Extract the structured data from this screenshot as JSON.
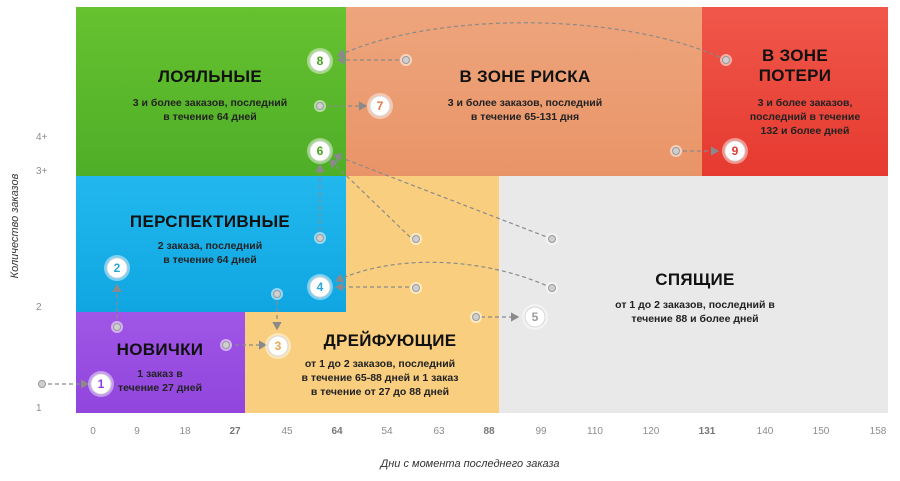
{
  "segments": {
    "loyal": {
      "title": "ЛОЯЛЬНЫЕ",
      "desc": "3 и более заказов, последний\nв течение 64 дней",
      "color": "#5ab82c"
    },
    "risk": {
      "title": "В ЗОНЕ РИСКА",
      "desc": "3 и более заказов, последний\nв течение 65-131 дня",
      "color": "#eb9e74"
    },
    "loss": {
      "title": "В ЗОНЕ\nПОТЕРИ",
      "desc": "3 и более заказов,\nпоследний в течение\n132 и более  дней",
      "color": "#e8473b"
    },
    "perspective": {
      "title": "ПЕРСПЕКТИВНЫЕ",
      "desc": "2 заказа, последний\nв течение 64 дней",
      "color": "#17b1ea"
    },
    "sleeping": {
      "title": "СПЯЩИЕ",
      "desc": "от 1 до 2 заказов, последний в\nтечение 88 и более дней",
      "color": "#e8e8e8"
    },
    "newbies": {
      "title": "НОВИЧКИ",
      "desc": "1 заказ в\nтечение 27 дней",
      "color": "#9b4ee2"
    },
    "drifting": {
      "title": "ДРЕЙФУЮЩИЕ",
      "desc": "от 1 до 2 заказов, последний\nв течение 65-88 дней и 1 заказ\nв течение от 27 до 88 дней",
      "color": "#f8cb7a"
    }
  },
  "y_axis": {
    "title": "Количество заказов",
    "ticks": [
      "4+",
      "3+",
      "2",
      "1"
    ]
  },
  "x_axis": {
    "title": "Дни с момента последнего заказа",
    "ticks": [
      "0",
      "9",
      "18",
      "27",
      "45",
      "64",
      "54",
      "63",
      "88",
      "99",
      "110",
      "120",
      "131",
      "140",
      "150",
      "158"
    ],
    "bold_ticks": [
      "27",
      "64",
      "88",
      "131"
    ]
  },
  "transitions": [
    "1",
    "2",
    "3",
    "4",
    "5",
    "6",
    "7",
    "8",
    "9"
  ]
}
